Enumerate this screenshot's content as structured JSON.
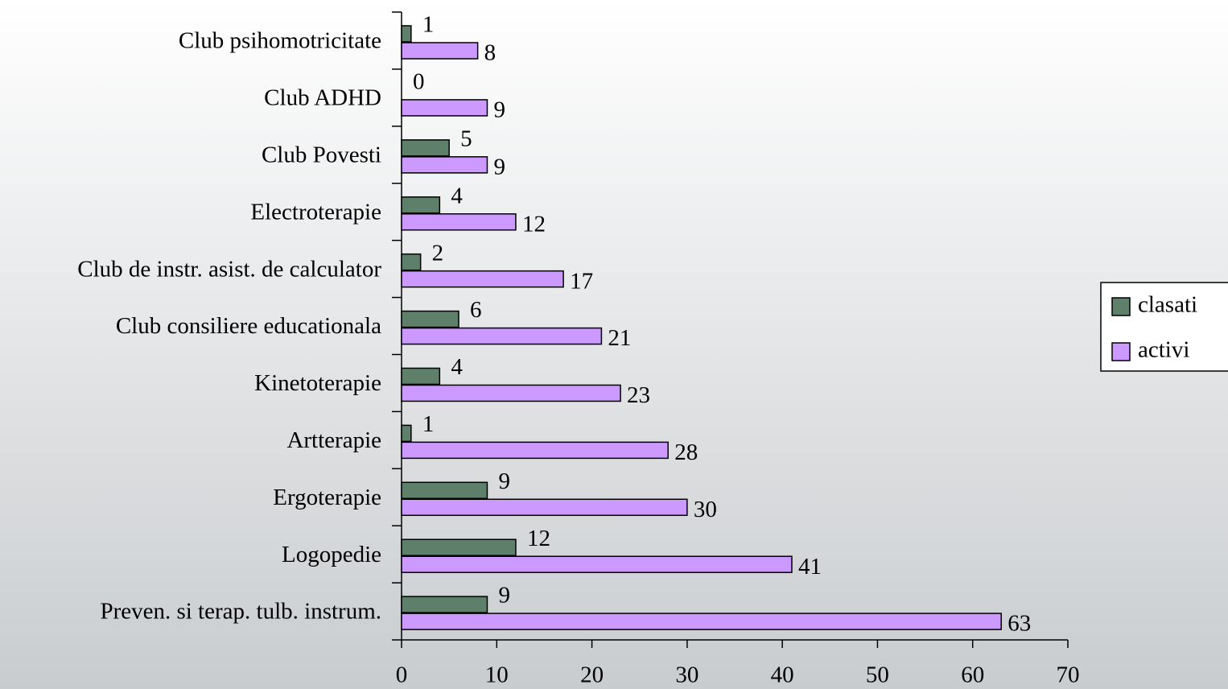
{
  "chart_data": {
    "type": "barh",
    "categories": [
      "Club psihomotricitate",
      "Club ADHD",
      "Club Povesti",
      "Electroterapie",
      "Club de instr. asist. de calculator",
      "Club consiliere educationala",
      "Kinetoterapie",
      "Artterapie",
      "Ergoterapie",
      "Logopedie",
      "Preven. si terap. tulb. instrum."
    ],
    "series": [
      {
        "name": "clasati",
        "color": "#5e7f69",
        "values": [
          1,
          0,
          5,
          4,
          2,
          6,
          4,
          1,
          9,
          12,
          9
        ]
      },
      {
        "name": "activi",
        "color": "#cc99ff",
        "values": [
          8,
          9,
          9,
          12,
          17,
          21,
          23,
          28,
          30,
          41,
          63
        ]
      }
    ],
    "xlim": [
      0,
      70
    ],
    "xticks": [
      0,
      10,
      20,
      30,
      40,
      50,
      60,
      70
    ],
    "legend": "right"
  }
}
